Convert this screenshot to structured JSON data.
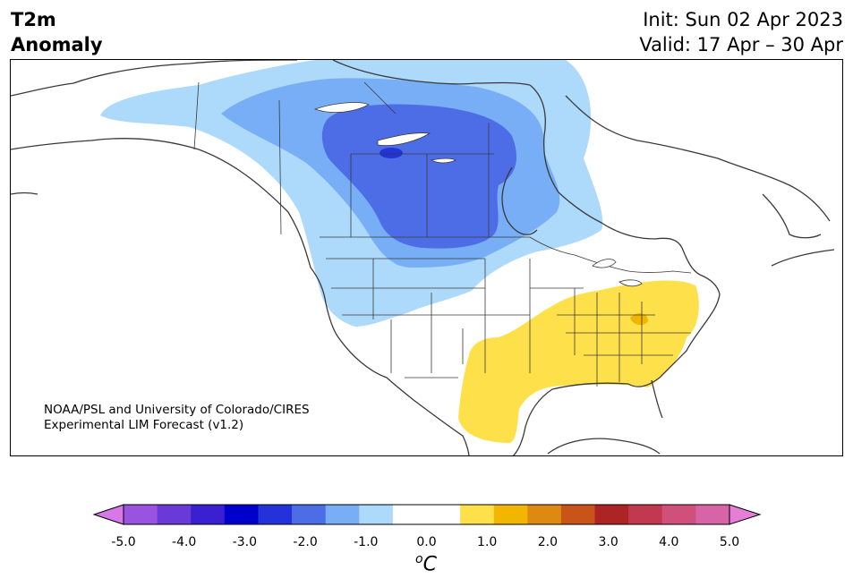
{
  "title": {
    "variable_line1": "T2m",
    "variable_line2": "Anomaly",
    "init": "Init: Sun 02 Apr 2023",
    "valid": "Valid: 17 Apr – 30 Apr"
  },
  "credit": {
    "line1": "NOAA/PSL and University of Colorado/CIRES",
    "line2": "Experimental LIM Forecast (v1.2)"
  },
  "colorbar": {
    "unit_base": "C",
    "unit_sup": "o",
    "extend": "both",
    "ticks": [
      "-5.0",
      "-4.0",
      "-3.0",
      "-2.0",
      "-1.0",
      "0.0",
      "1.0",
      "2.0",
      "3.0",
      "4.0",
      "5.0"
    ],
    "colors": [
      "#d878e8",
      "#9a52e0",
      "#6a3ad8",
      "#3a20d0",
      "#0000cc",
      "#2333d9",
      "#4d6de6",
      "#78aef5",
      "#add9fb",
      "#ffffff",
      "#ffffff",
      "#fee04a",
      "#f2b600",
      "#de8a12",
      "#c8541a",
      "#ac2424",
      "#c23850",
      "#d0507c",
      "#d864a8",
      "#e67ed8"
    ]
  },
  "map": {
    "colors": {
      "land_line": "#3a3a3a",
      "cold_1": "#add9fb",
      "cold_2": "#78aef5",
      "cold_3": "#4d6de6",
      "cold_4": "#2333d9",
      "warm_1": "#fee04a",
      "warm_2": "#f2b600"
    }
  }
}
